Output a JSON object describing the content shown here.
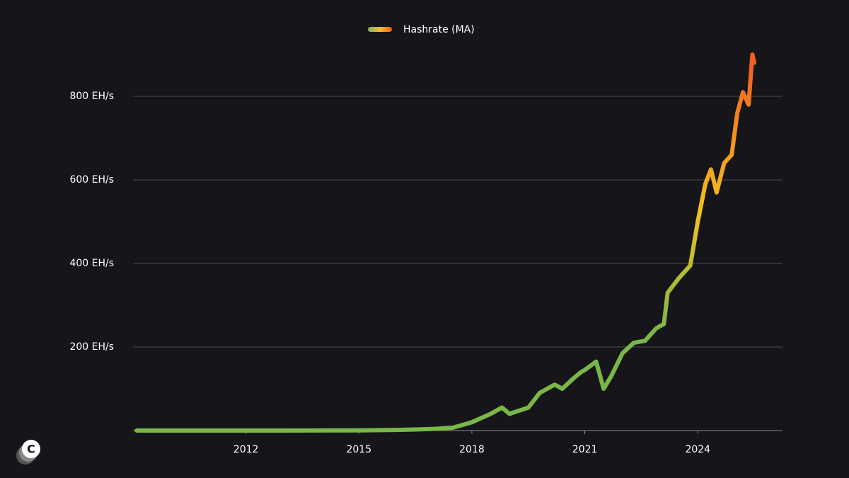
{
  "chart_data": {
    "type": "line",
    "legend": "Hashrate (MA)",
    "colors": [
      "#7ab648",
      "#f2c21b",
      "#f15a22"
    ],
    "x": [
      2009.1,
      2010,
      2011,
      2012,
      2013,
      2014,
      2015,
      2016,
      2016.5,
      2017,
      2017.5,
      2018,
      2018.5,
      2018.8,
      2019.0,
      2019.5,
      2019.8,
      2020.2,
      2020.4,
      2020.7,
      2020.9,
      2021.0,
      2021.3,
      2021.5,
      2021.7,
      2022.0,
      2022.3,
      2022.6,
      2022.9,
      2023.1,
      2023.2,
      2023.5,
      2023.8,
      2024.0,
      2024.2,
      2024.35,
      2024.5,
      2024.7,
      2024.9,
      2025.05,
      2025.2,
      2025.35,
      2025.45,
      2025.5
    ],
    "values": [
      0,
      0,
      0,
      0,
      0,
      0.2,
      0.4,
      1.5,
      2.5,
      4,
      7,
      20,
      40,
      55,
      40,
      55,
      90,
      110,
      100,
      125,
      140,
      145,
      165,
      100,
      130,
      185,
      210,
      215,
      245,
      255,
      330,
      365,
      395,
      500,
      590,
      625,
      570,
      640,
      660,
      760,
      810,
      780,
      900,
      880
    ],
    "xlim": [
      2009,
      2026.25
    ],
    "xticks": [
      2012,
      2015,
      2018,
      2021,
      2024
    ],
    "ylim": [
      0,
      950
    ],
    "yticks": [
      {
        "value": 200,
        "label": "200 EH/s"
      },
      {
        "value": 400,
        "label": "400 EH/s"
      },
      {
        "value": 600,
        "label": "600 EH/s"
      },
      {
        "value": 800,
        "label": "800 EH/s"
      }
    ],
    "grid": true
  }
}
